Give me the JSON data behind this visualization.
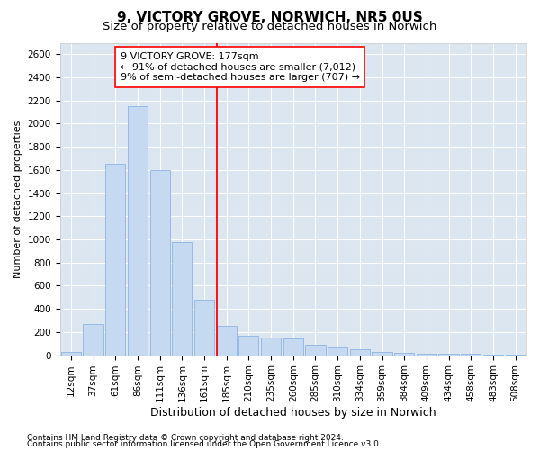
{
  "title": "9, VICTORY GROVE, NORWICH, NR5 0US",
  "subtitle": "Size of property relative to detached houses in Norwich",
  "xlabel": "Distribution of detached houses by size in Norwich",
  "ylabel": "Number of detached properties",
  "categories": [
    "12sqm",
    "37sqm",
    "61sqm",
    "86sqm",
    "111sqm",
    "136sqm",
    "161sqm",
    "185sqm",
    "210sqm",
    "235sqm",
    "260sqm",
    "285sqm",
    "310sqm",
    "334sqm",
    "359sqm",
    "384sqm",
    "409sqm",
    "434sqm",
    "458sqm",
    "483sqm",
    "508sqm"
  ],
  "values": [
    30,
    270,
    1650,
    2150,
    1600,
    975,
    480,
    255,
    165,
    155,
    145,
    90,
    65,
    55,
    30,
    20,
    15,
    10,
    10,
    5,
    5
  ],
  "bar_color": "#c5d9f1",
  "bar_edge_color": "#8db4e2",
  "highlight_line_color": "red",
  "highlight_line_xindex": 7,
  "annotation_text": "9 VICTORY GROVE: 177sqm\n← 91% of detached houses are smaller (7,012)\n9% of semi-detached houses are larger (707) →",
  "annotation_box_color": "white",
  "annotation_box_edge": "red",
  "ylim": [
    0,
    2700
  ],
  "yticks": [
    0,
    200,
    400,
    600,
    800,
    1000,
    1200,
    1400,
    1600,
    1800,
    2000,
    2200,
    2400,
    2600
  ],
  "bg_color": "#dce6f1",
  "grid_color": "white",
  "footer1": "Contains HM Land Registry data © Crown copyright and database right 2024.",
  "footer2": "Contains public sector information licensed under the Open Government Licence v3.0.",
  "title_fontsize": 11,
  "subtitle_fontsize": 9.5,
  "xlabel_fontsize": 9,
  "ylabel_fontsize": 8,
  "tick_fontsize": 7.5,
  "annotation_fontsize": 8,
  "footer_fontsize": 6.5
}
